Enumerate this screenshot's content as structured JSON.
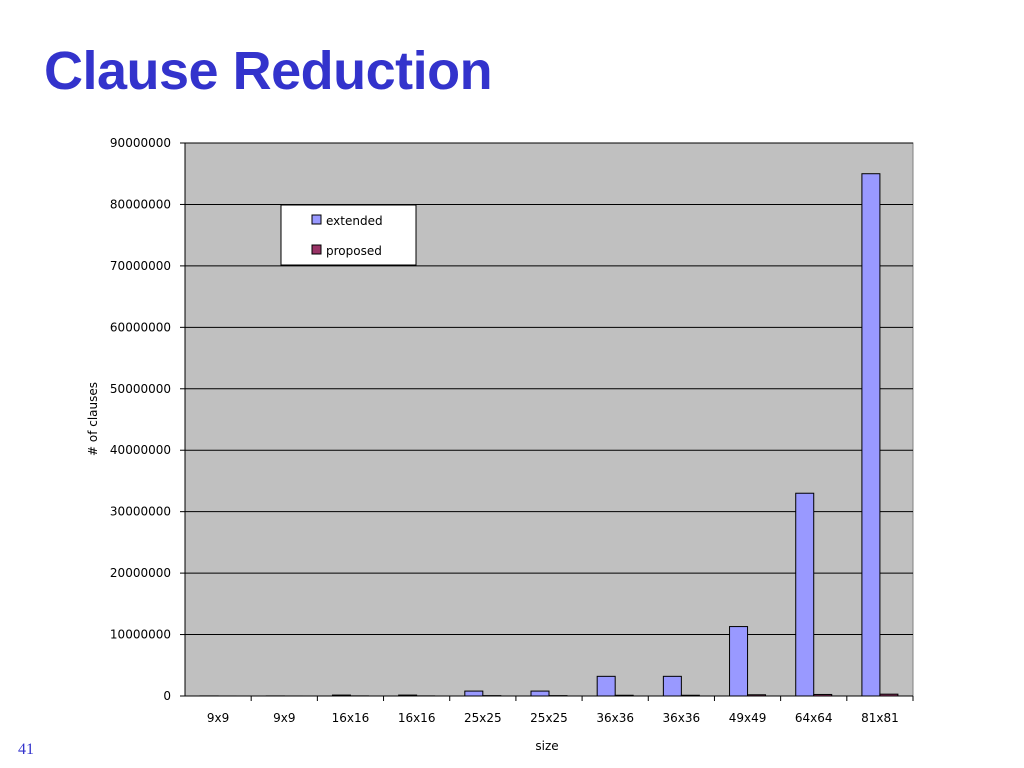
{
  "slide": {
    "title": "Clause Reduction",
    "page_number": "41"
  },
  "colors": {
    "title": "#3333cc",
    "plot_background": "#c0c0c0",
    "extended": "#9999ff",
    "proposed": "#993366"
  },
  "chart_data": {
    "type": "bar",
    "title": "",
    "xlabel": "size",
    "ylabel": "# of clauses",
    "ylim": [
      0,
      90000000
    ],
    "yticks": [
      0,
      10000000,
      20000000,
      30000000,
      40000000,
      50000000,
      60000000,
      70000000,
      80000000,
      90000000
    ],
    "grid": true,
    "legend_position": "top-left",
    "categories": [
      "9x9",
      "9x9",
      "16x16",
      "16x16",
      "25x25",
      "25x25",
      "36x36",
      "36x36",
      "49x49",
      "64x64",
      "81x81"
    ],
    "series": [
      {
        "name": "extended",
        "values": [
          15000,
          15000,
          150000,
          150000,
          800000,
          800000,
          3200000,
          3200000,
          11300000,
          33000000,
          85000000
        ]
      },
      {
        "name": "proposed",
        "values": [
          3000,
          3000,
          20000,
          20000,
          60000,
          60000,
          120000,
          120000,
          200000,
          250000,
          300000
        ]
      }
    ]
  }
}
